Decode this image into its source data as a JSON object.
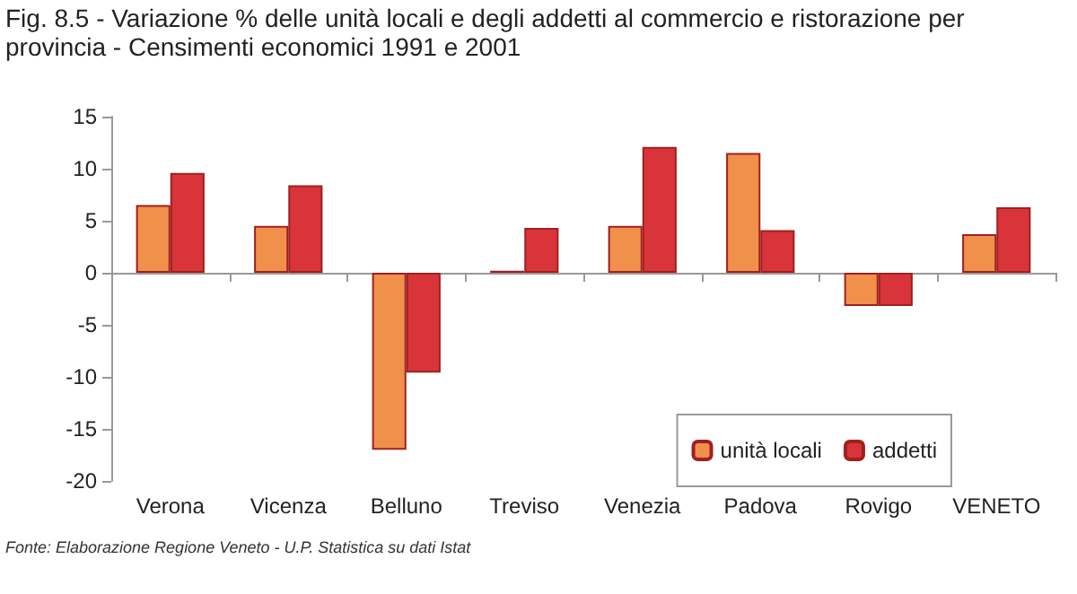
{
  "chart_data": {
    "type": "bar",
    "title": "Fig. 8.5 - Variazione % delle unità locali e degli addetti al commercio e ristorazione per provincia - Censimenti economici 1991 e 2001",
    "categories": [
      "Verona",
      "Vicenza",
      "Belluno",
      "Treviso",
      "Venezia",
      "Padova",
      "Rovigo",
      "VENETO"
    ],
    "series": [
      {
        "name": "unità locali",
        "color": "#f0904a",
        "values": [
          6.5,
          4.5,
          -17.0,
          0.2,
          4.5,
          11.5,
          -3.2,
          3.7
        ]
      },
      {
        "name": "addetti",
        "color": "#d9343a",
        "values": [
          9.6,
          8.4,
          -9.6,
          4.3,
          12.1,
          4.1,
          -3.2,
          6.3
        ]
      }
    ],
    "ylim": [
      -20,
      15
    ],
    "yticks": [
      -20,
      -15,
      -10,
      -5,
      0,
      5,
      10,
      15
    ],
    "legend": "bottom right",
    "annotations": [
      "Fonte: Elaborazione Regione Veneto - U.P. Statistica su dati Istat"
    ]
  }
}
